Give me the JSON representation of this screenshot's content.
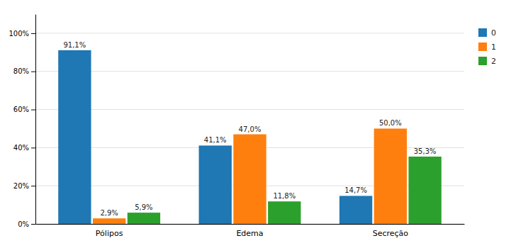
{
  "chart_data": {
    "type": "bar",
    "categories": [
      "Pólipos",
      "Edema",
      "Secreção"
    ],
    "series": [
      {
        "name": "0",
        "values": [
          91.1,
          41.1,
          14.7
        ],
        "value_labels": [
          "91,1%",
          "41,1%",
          "14,7%"
        ]
      },
      {
        "name": "1",
        "values": [
          2.9,
          47.0,
          50.0
        ],
        "value_labels": [
          "2,9%",
          "47,0%",
          "50,0%"
        ]
      },
      {
        "name": "2",
        "values": [
          5.9,
          11.8,
          35.3
        ],
        "value_labels": [
          "5,9%",
          "11,8%",
          "35,3%"
        ]
      }
    ],
    "ylim": [
      0,
      110
    ],
    "yticks": [
      {
        "value": 0,
        "label": "0%"
      },
      {
        "value": 20,
        "label": "20%"
      },
      {
        "value": 40,
        "label": "40%"
      },
      {
        "value": 60,
        "label": "60%"
      },
      {
        "value": 80,
        "label": "80%"
      },
      {
        "value": 100,
        "label": "100%"
      }
    ],
    "grid": true,
    "legend": "right",
    "data_labels": true
  }
}
